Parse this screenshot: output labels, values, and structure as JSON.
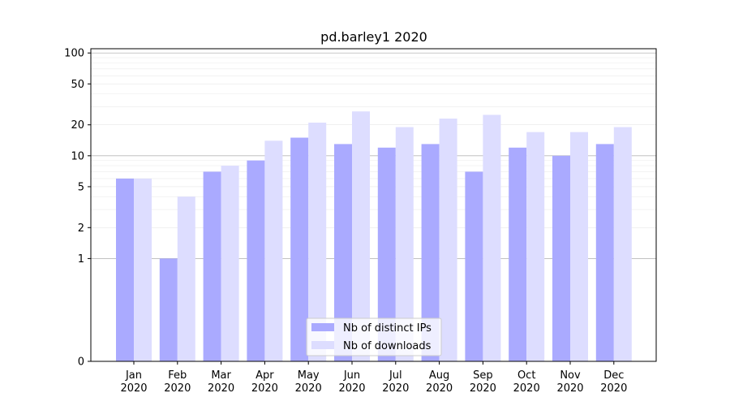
{
  "chart_data": {
    "type": "bar",
    "title": "pd.barley1 2020",
    "xlabel": "",
    "ylabel": "",
    "yscale": "symlog",
    "ylim": [
      0,
      110
    ],
    "yticks": [
      0,
      1,
      2,
      5,
      10,
      20,
      50,
      100
    ],
    "grid": true,
    "legend_position": "lower-center",
    "categories": [
      {
        "month": "Jan",
        "year": "2020"
      },
      {
        "month": "Feb",
        "year": "2020"
      },
      {
        "month": "Mar",
        "year": "2020"
      },
      {
        "month": "Apr",
        "year": "2020"
      },
      {
        "month": "May",
        "year": "2020"
      },
      {
        "month": "Jun",
        "year": "2020"
      },
      {
        "month": "Jul",
        "year": "2020"
      },
      {
        "month": "Aug",
        "year": "2020"
      },
      {
        "month": "Sep",
        "year": "2020"
      },
      {
        "month": "Oct",
        "year": "2020"
      },
      {
        "month": "Nov",
        "year": "2020"
      },
      {
        "month": "Dec",
        "year": "2020"
      }
    ],
    "series": [
      {
        "name": "Nb of distinct IPs",
        "color": "#aaaaff",
        "values": [
          6,
          1,
          7,
          9,
          15,
          13,
          12,
          13,
          7,
          12,
          10,
          13
        ]
      },
      {
        "name": "Nb of downloads",
        "color": "#ddddff",
        "values": [
          6,
          4,
          8,
          14,
          21,
          27,
          19,
          23,
          25,
          17,
          17,
          19
        ]
      }
    ]
  }
}
